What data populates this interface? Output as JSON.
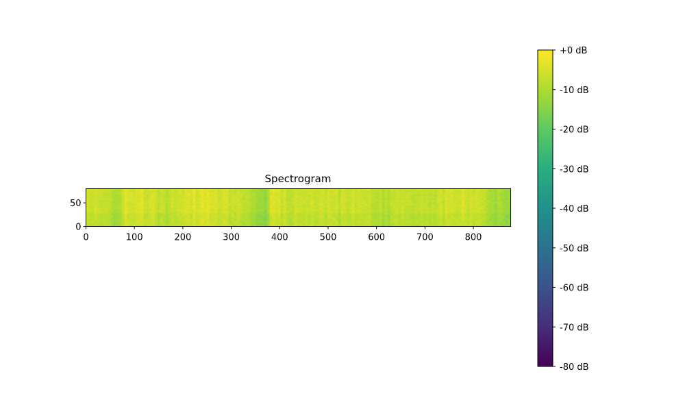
{
  "chart_data": {
    "type": "heatmap",
    "title": "Spectrogram",
    "xlabel": "",
    "ylabel": "",
    "xlim": [
      0,
      877
    ],
    "ylim": [
      0,
      80
    ],
    "x_ticks": [
      {
        "value": 0,
        "label": "0"
      },
      {
        "value": 100,
        "label": "100"
      },
      {
        "value": 200,
        "label": "200"
      },
      {
        "value": 300,
        "label": "300"
      },
      {
        "value": 400,
        "label": "400"
      },
      {
        "value": 500,
        "label": "500"
      },
      {
        "value": 600,
        "label": "600"
      },
      {
        "value": 700,
        "label": "700"
      },
      {
        "value": 800,
        "label": "800"
      }
    ],
    "y_ticks": [
      {
        "value": 0,
        "label": "0"
      },
      {
        "value": 50,
        "label": "50"
      }
    ],
    "colormap": "viridis",
    "colorbar": {
      "range": [
        -80,
        0
      ],
      "ticks": [
        {
          "value": 0,
          "label": "+0 dB"
        },
        {
          "value": -10,
          "label": "-10 dB"
        },
        {
          "value": -20,
          "label": "-20 dB"
        },
        {
          "value": -30,
          "label": "-30 dB"
        },
        {
          "value": -40,
          "label": "-40 dB"
        },
        {
          "value": -50,
          "label": "-50 dB"
        },
        {
          "value": -60,
          "label": "-60 dB"
        },
        {
          "value": -70,
          "label": "-70 dB"
        },
        {
          "value": -80,
          "label": "-80 dB"
        }
      ]
    },
    "time_profile_db": [
      {
        "x": 0,
        "db": -5
      },
      {
        "x": 40,
        "db": -6
      },
      {
        "x": 55,
        "db": -9
      },
      {
        "x": 70,
        "db": -11
      },
      {
        "x": 80,
        "db": -4
      },
      {
        "x": 130,
        "db": -5
      },
      {
        "x": 160,
        "db": -8
      },
      {
        "x": 200,
        "db": -5
      },
      {
        "x": 240,
        "db": -4
      },
      {
        "x": 280,
        "db": -5
      },
      {
        "x": 330,
        "db": -7
      },
      {
        "x": 350,
        "db": -10
      },
      {
        "x": 370,
        "db": -13
      },
      {
        "x": 385,
        "db": -4
      },
      {
        "x": 420,
        "db": -7
      },
      {
        "x": 470,
        "db": -6
      },
      {
        "x": 520,
        "db": -7
      },
      {
        "x": 560,
        "db": -6
      },
      {
        "x": 620,
        "db": -9
      },
      {
        "x": 660,
        "db": -6
      },
      {
        "x": 700,
        "db": -8
      },
      {
        "x": 760,
        "db": -5
      },
      {
        "x": 820,
        "db": -6
      },
      {
        "x": 840,
        "db": -11
      },
      {
        "x": 877,
        "db": -12
      }
    ]
  }
}
